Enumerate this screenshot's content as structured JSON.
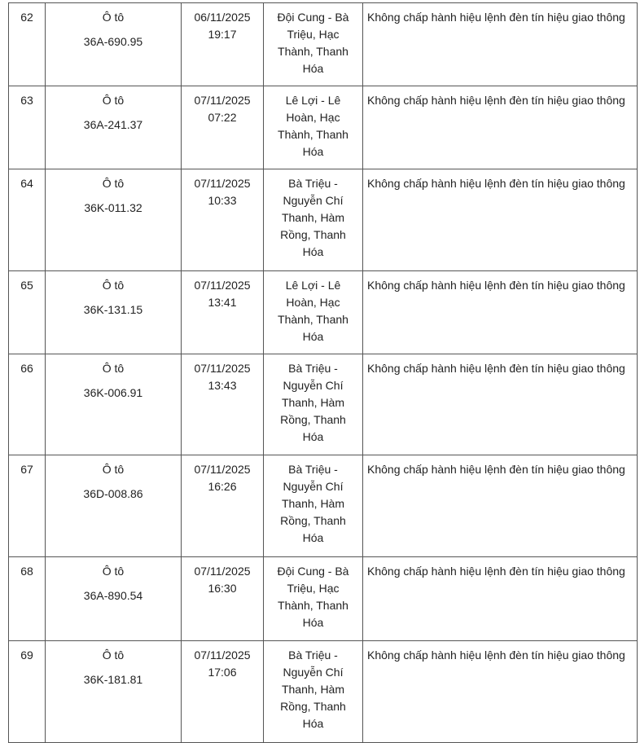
{
  "table": {
    "rows": [
      {
        "no": "62",
        "vehicle": "Ô tô",
        "plate": "36A-690.95",
        "date": "06/11/2025",
        "time": "19:17",
        "location": "Đội Cung - Bà Triệu, Hạc Thành, Thanh Hóa",
        "violation": "Không chấp hành hiệu lệnh đèn tín hiệu giao thông"
      },
      {
        "no": "63",
        "vehicle": "Ô tô",
        "plate": "36A-241.37",
        "date": "07/11/2025",
        "time": "07:22",
        "location": "Lê Lợi - Lê Hoàn, Hạc Thành, Thanh Hóa",
        "violation": "Không chấp hành hiệu lệnh đèn tín hiệu giao thông"
      },
      {
        "no": "64",
        "vehicle": "Ô tô",
        "plate": "36K-011.32",
        "date": "07/11/2025",
        "time": "10:33",
        "location": "Bà Triệu - Nguyễn Chí Thanh, Hàm Rồng, Thanh Hóa",
        "violation": "Không chấp hành hiệu lệnh đèn tín hiệu giao thông"
      },
      {
        "no": "65",
        "vehicle": "Ô tô",
        "plate": "36K-131.15",
        "date": "07/11/2025",
        "time": "13:41",
        "location": "Lê Lợi - Lê Hoàn, Hạc Thành, Thanh Hóa",
        "violation": "Không chấp hành hiệu lệnh đèn tín hiệu giao thông"
      },
      {
        "no": "66",
        "vehicle": "Ô tô",
        "plate": "36K-006.91",
        "date": "07/11/2025",
        "time": "13:43",
        "location": "Bà Triệu - Nguyễn Chí Thanh, Hàm Rồng, Thanh Hóa",
        "violation": "Không chấp hành hiệu lệnh đèn tín hiệu giao thông"
      },
      {
        "no": "67",
        "vehicle": "Ô tô",
        "plate": "36D-008.86",
        "date": "07/11/2025",
        "time": "16:26",
        "location": "Bà Triệu - Nguyễn Chí Thanh, Hàm Rồng, Thanh Hóa",
        "violation": "Không chấp hành hiệu lệnh đèn tín hiệu giao thông"
      },
      {
        "no": "68",
        "vehicle": "Ô tô",
        "plate": "36A-890.54",
        "date": "07/11/2025",
        "time": "16:30",
        "location": "Đội Cung - Bà Triệu, Hạc Thành, Thanh Hóa",
        "violation": "Không chấp hành hiệu lệnh đèn tín hiệu giao thông"
      },
      {
        "no": "69",
        "vehicle": "Ô tô",
        "plate": "36K-181.81",
        "date": "07/11/2025",
        "time": "17:06",
        "location": "Bà Triệu - Nguyễn Chí Thanh, Hàm Rồng, Thanh Hóa",
        "violation": "Không chấp hành hiệu lệnh đèn tín hiệu giao thông"
      }
    ]
  }
}
